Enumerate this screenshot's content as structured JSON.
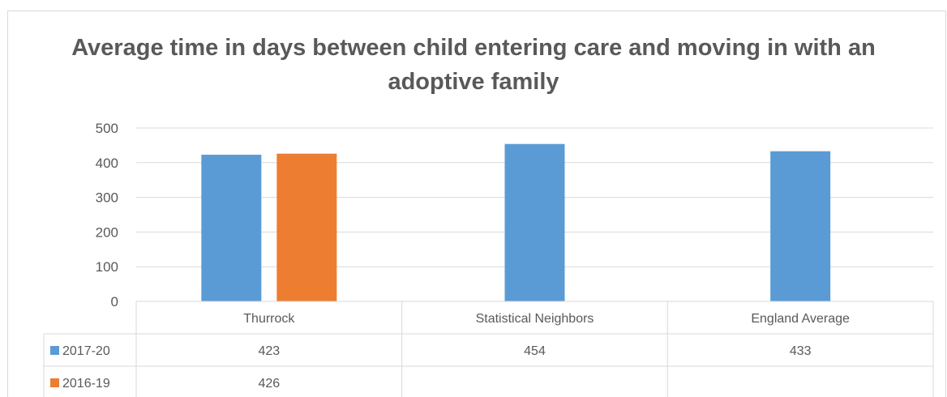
{
  "chart_data": {
    "type": "bar",
    "title": "Average time in days between child entering care and moving in with an adoptive family",
    "categories": [
      "Thurrock",
      "Statistical Neighbors",
      "England Average"
    ],
    "series": [
      {
        "name": "2017-20",
        "values": [
          423,
          454,
          433
        ],
        "color": "#5b9bd5"
      },
      {
        "name": "2016-19",
        "values": [
          426,
          null,
          null
        ],
        "color": "#ed7d31"
      }
    ],
    "table_values": [
      [
        "423",
        "454",
        "433"
      ],
      [
        "426",
        "",
        ""
      ]
    ],
    "ylim": [
      0,
      500
    ],
    "yticks": [
      0,
      100,
      200,
      300,
      400,
      500
    ],
    "grid": true,
    "legend": "data-table"
  }
}
